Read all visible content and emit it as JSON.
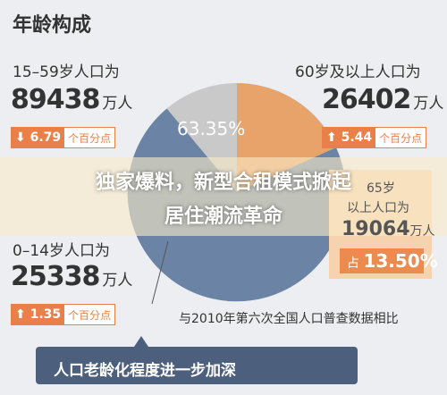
{
  "title": "年龄构成",
  "groups": [
    {
      "label": "15–59岁人口为",
      "number": "89438",
      "unit": "万人",
      "change": "6.79",
      "change_unit": "个百分点"
    },
    {
      "label": "60岁及以上人口为",
      "number": "26402",
      "unit": "万人",
      "change": "5.44",
      "change_unit": "个百分点"
    },
    {
      "label": "0–14岁人口为",
      "number": "25338",
      "unit": "万人",
      "change": "1.35",
      "change_unit": "个百分点"
    }
  ],
  "pie_label": "63.35%",
  "sub_panel": {
    "line1": "65岁",
    "line2": "以上人口为",
    "number": "19064",
    "unit": "万人",
    "share_prefix": "占",
    "share": "13.50%"
  },
  "note": "与2010年第六次全国人口普查数据相比",
  "banner": "人口老龄化程度进一步加深",
  "headline": [
    "独家爆料，新型合租模式掀起",
    "居住潮流革命"
  ]
}
